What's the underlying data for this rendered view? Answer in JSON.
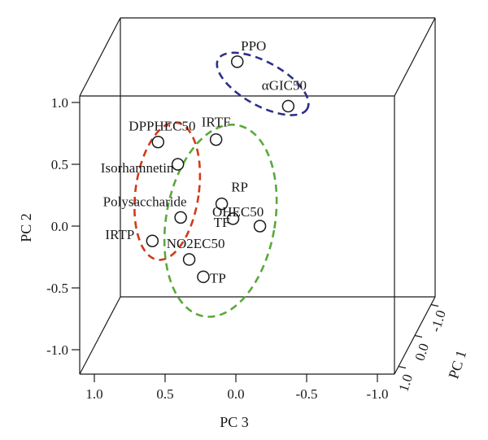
{
  "chart_data": {
    "type": "scatter",
    "projection": "3d",
    "xlabel": "PC 3",
    "ylabel": "PC 2",
    "zlabel": "PC 1",
    "x_ticks": [
      "1.0",
      "0.5",
      "0.0",
      "-0.5",
      "-1.0"
    ],
    "y_ticks": [
      "1.0",
      "0.5",
      "0.0",
      "-0.5",
      "-1.0"
    ],
    "z_ticks": [
      "-1.0",
      "0.0",
      "1.0"
    ],
    "grid": false,
    "points": [
      {
        "label": "PPO",
        "pc3": -0.01,
        "pc2": 1.33
      },
      {
        "label": "αGIC50",
        "pc3": -0.37,
        "pc2": 0.97
      },
      {
        "label": "DPPHEC50",
        "pc3": 0.55,
        "pc2": 0.68
      },
      {
        "label": "IRTF",
        "pc3": 0.14,
        "pc2": 0.7
      },
      {
        "label": "Isorhamnetin",
        "pc3": 0.41,
        "pc2": 0.5
      },
      {
        "label": "RP",
        "pc3": 0.1,
        "pc2": 0.18
      },
      {
        "label": "Polysaccharide",
        "pc3": 0.39,
        "pc2": 0.07
      },
      {
        "label": "TF",
        "pc3": 0.02,
        "pc2": 0.06
      },
      {
        "label": "OHEC50",
        "pc3": -0.17,
        "pc2": 0.0
      },
      {
        "label": "IRTP",
        "pc3": 0.59,
        "pc2": -0.12
      },
      {
        "label": "NO2EC50",
        "pc3": 0.33,
        "pc2": -0.27
      },
      {
        "label": "TP",
        "pc3": 0.23,
        "pc2": -0.41
      }
    ],
    "clusters": [
      {
        "color": "#2e2e8a",
        "members": [
          "PPO",
          "αGIC50"
        ]
      },
      {
        "color": "#d23a1a",
        "members": [
          "DPPHEC50",
          "Isorhamnetin",
          "Polysaccharide",
          "IRTP"
        ]
      },
      {
        "color": "#5aa83c",
        "members": [
          "IRTF",
          "RP",
          "TF",
          "OHEC50",
          "NO2EC50",
          "TP"
        ]
      }
    ]
  }
}
